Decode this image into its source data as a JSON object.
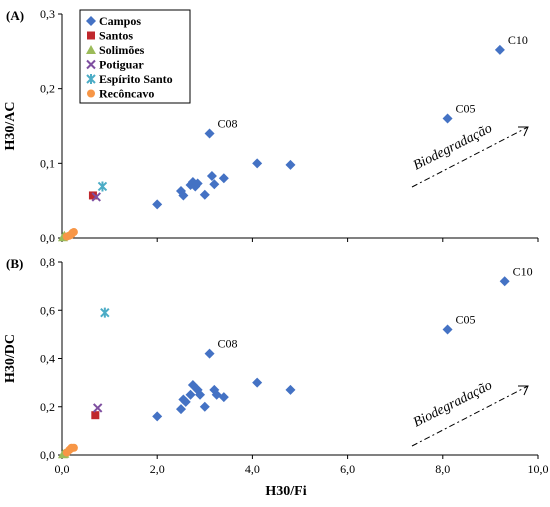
{
  "chart_data": [
    {
      "type": "scatter",
      "panel_label": "(A)",
      "ylabel": "H30/AC",
      "xlabel": "",
      "xlim": [
        0,
        10
      ],
      "ylim": [
        0,
        0.3
      ],
      "yticks": [
        "0,0",
        "0,1",
        "0,2",
        "0,3"
      ],
      "xticks": [],
      "series": [
        {
          "name": "Campos",
          "color": "#4472C4",
          "marker": "diamond",
          "points": [
            [
              2.0,
              0.045
            ],
            [
              2.5,
              0.063
            ],
            [
              2.55,
              0.057
            ],
            [
              2.7,
              0.071
            ],
            [
              2.75,
              0.075
            ],
            [
              2.8,
              0.069
            ],
            [
              2.85,
              0.073
            ],
            [
              3.0,
              0.058
            ],
            [
              3.1,
              0.14
            ],
            [
              3.15,
              0.083
            ],
            [
              3.2,
              0.072
            ],
            [
              3.4,
              0.08
            ],
            [
              4.1,
              0.1
            ],
            [
              4.8,
              0.098
            ],
            [
              8.1,
              0.16
            ],
            [
              9.2,
              0.252
            ]
          ]
        },
        {
          "name": "Santos",
          "color": "#C0282D",
          "marker": "square",
          "points": [
            [
              0.65,
              0.057
            ]
          ]
        },
        {
          "name": "Solimões",
          "color": "#9BBB59",
          "marker": "triangle",
          "points": [
            [
              0.02,
              0.001
            ],
            [
              0.05,
              0.003
            ]
          ]
        },
        {
          "name": "Potiguar",
          "color": "#7E4FA0",
          "marker": "x",
          "points": [
            [
              0.72,
              0.055
            ]
          ]
        },
        {
          "name": "Espírito Santo",
          "color": "#4BACC6",
          "marker": "star",
          "points": [
            [
              0.85,
              0.069
            ]
          ]
        },
        {
          "name": "Reconcavo",
          "color": "#F79646",
          "marker": "circle",
          "points": [
            [
              0.1,
              0.002
            ],
            [
              0.15,
              0.003
            ],
            [
              0.18,
              0.004
            ],
            [
              0.2,
              0.005
            ],
            [
              0.22,
              0.007
            ],
            [
              0.25,
              0.008
            ]
          ]
        }
      ],
      "annotations": [
        {
          "text": "C08",
          "x": 3.1,
          "y": 0.14
        },
        {
          "text": "C05",
          "x": 8.1,
          "y": 0.16
        },
        {
          "text": "C10",
          "x": 9.2,
          "y": 0.252
        }
      ],
      "trend_label": "Biodegradação"
    },
    {
      "type": "scatter",
      "panel_label": "(B)",
      "ylabel": "H30/DC",
      "xlabel": "H30/Fi",
      "xlim": [
        0,
        10
      ],
      "ylim": [
        0,
        0.8
      ],
      "yticks": [
        "0,0",
        "0,2",
        "0,4",
        "0,6",
        "0,8"
      ],
      "xticks": [
        "0,0",
        "2,0",
        "4,0",
        "6,0",
        "8,0",
        "10,0"
      ],
      "series": [
        {
          "name": "Campos",
          "color": "#4472C4",
          "marker": "diamond",
          "points": [
            [
              2.0,
              0.16
            ],
            [
              2.5,
              0.19
            ],
            [
              2.55,
              0.23
            ],
            [
              2.6,
              0.22
            ],
            [
              2.7,
              0.25
            ],
            [
              2.75,
              0.29
            ],
            [
              2.85,
              0.27
            ],
            [
              2.9,
              0.25
            ],
            [
              3.0,
              0.2
            ],
            [
              3.1,
              0.42
            ],
            [
              3.2,
              0.27
            ],
            [
              3.25,
              0.25
            ],
            [
              3.4,
              0.24
            ],
            [
              4.1,
              0.3
            ],
            [
              4.8,
              0.27
            ],
            [
              8.1,
              0.52
            ],
            [
              9.3,
              0.72
            ]
          ]
        },
        {
          "name": "Santos",
          "color": "#C0282D",
          "marker": "square",
          "points": [
            [
              0.7,
              0.165
            ]
          ]
        },
        {
          "name": "Solimões",
          "color": "#9BBB59",
          "marker": "triangle",
          "points": [
            [
              0.02,
              0.003
            ],
            [
              0.05,
              0.005
            ]
          ]
        },
        {
          "name": "Potiguar",
          "color": "#7E4FA0",
          "marker": "x",
          "points": [
            [
              0.75,
              0.195
            ]
          ]
        },
        {
          "name": "Espírito Santo",
          "color": "#4BACC6",
          "marker": "star",
          "points": [
            [
              0.9,
              0.59
            ]
          ]
        },
        {
          "name": "Reconcavo",
          "color": "#F79646",
          "marker": "circle",
          "points": [
            [
              0.1,
              0.01
            ],
            [
              0.15,
              0.02
            ],
            [
              0.18,
              0.025
            ],
            [
              0.2,
              0.03
            ],
            [
              0.25,
              0.03
            ]
          ]
        }
      ],
      "annotations": [
        {
          "text": "C08",
          "x": 3.1,
          "y": 0.42
        },
        {
          "text": "C05",
          "x": 8.1,
          "y": 0.52
        },
        {
          "text": "C10",
          "x": 9.3,
          "y": 0.72
        }
      ],
      "trend_label": "Biodegradação"
    }
  ],
  "legend": {
    "placement": "top-left",
    "items": [
      {
        "label": "Campos",
        "marker": "diamond",
        "color": "#4472C4"
      },
      {
        "label": "Santos",
        "marker": "square",
        "color": "#C0282D"
      },
      {
        "label": "Solimões",
        "marker": "triangle",
        "color": "#9BBB59"
      },
      {
        "label": "Potiguar",
        "marker": "x",
        "color": "#7E4FA0"
      },
      {
        "label": "Espírito Santo",
        "marker": "star",
        "color": "#4BACC6"
      },
      {
        "label": "Recôncavo",
        "marker": "circle",
        "color": "#F79646"
      }
    ]
  }
}
